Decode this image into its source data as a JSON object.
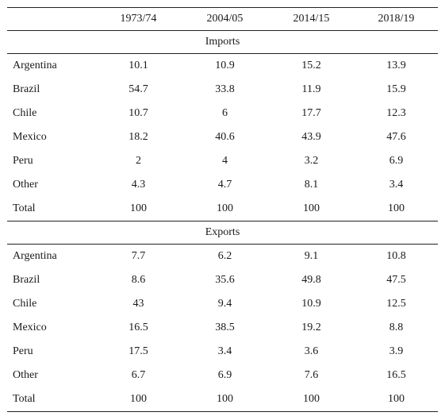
{
  "table": {
    "columns": [
      "",
      "1973/74",
      "2004/05",
      "2014/15",
      "2018/19"
    ],
    "sections": [
      {
        "title": "Imports",
        "rows": [
          {
            "label": "Argentina",
            "values": [
              "10.1",
              "10.9",
              "15.2",
              "13.9"
            ]
          },
          {
            "label": "Brazil",
            "values": [
              "54.7",
              "33.8",
              "11.9",
              "15.9"
            ]
          },
          {
            "label": "Chile",
            "values": [
              "10.7",
              "6",
              "17.7",
              "12.3"
            ]
          },
          {
            "label": "Mexico",
            "values": [
              "18.2",
              "40.6",
              "43.9",
              "47.6"
            ]
          },
          {
            "label": "Peru",
            "values": [
              "2",
              "4",
              "3.2",
              "6.9"
            ]
          },
          {
            "label": "Other",
            "values": [
              "4.3",
              "4.7",
              "8.1",
              "3.4"
            ]
          },
          {
            "label": "Total",
            "values": [
              "100",
              "100",
              "100",
              "100"
            ]
          }
        ]
      },
      {
        "title": "Exports",
        "rows": [
          {
            "label": "Argentina",
            "values": [
              "7.7",
              "6.2",
              "9.1",
              "10.8"
            ]
          },
          {
            "label": "Brazil",
            "values": [
              "8.6",
              "35.6",
              "49.8",
              "47.5"
            ]
          },
          {
            "label": "Chile",
            "values": [
              "43",
              "9.4",
              "10.9",
              "12.5"
            ]
          },
          {
            "label": "Mexico",
            "values": [
              "16.5",
              "38.5",
              "19.2",
              "8.8"
            ]
          },
          {
            "label": "Peru",
            "values": [
              "17.5",
              "3.4",
              "3.6",
              "3.9"
            ]
          },
          {
            "label": "Other",
            "values": [
              "6.7",
              "6.9",
              "7.6",
              "16.5"
            ]
          },
          {
            "label": "Total",
            "values": [
              "100",
              "100",
              "100",
              "100"
            ]
          }
        ]
      }
    ]
  }
}
